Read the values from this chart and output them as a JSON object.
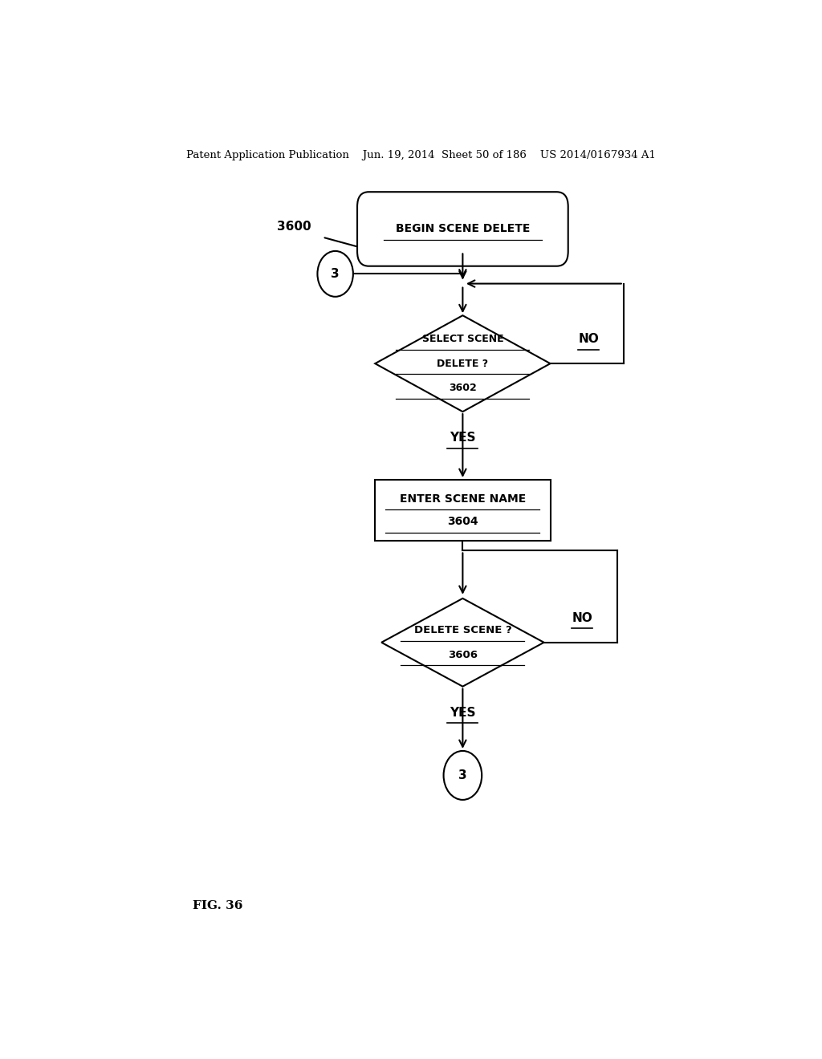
{
  "bg_color": "#ffffff",
  "header_text": "Patent Application Publication    Jun. 19, 2014  Sheet 50 of 186    US 2014/0167934 A1",
  "fig_label": "FIG. 36",
  "label_3600": "3600",
  "start_text": "BEGIN SCENE DELETE",
  "diamond1_lines": [
    "SELECT SCENE",
    "DELETE ?",
    "3602"
  ],
  "rect1_lines": [
    "ENTER SCENE NAME",
    "3604"
  ],
  "diamond2_lines": [
    "DELETE SCENE ?",
    "3606"
  ],
  "circle_text": "3",
  "no_label": "NO",
  "yes_label": "YES"
}
